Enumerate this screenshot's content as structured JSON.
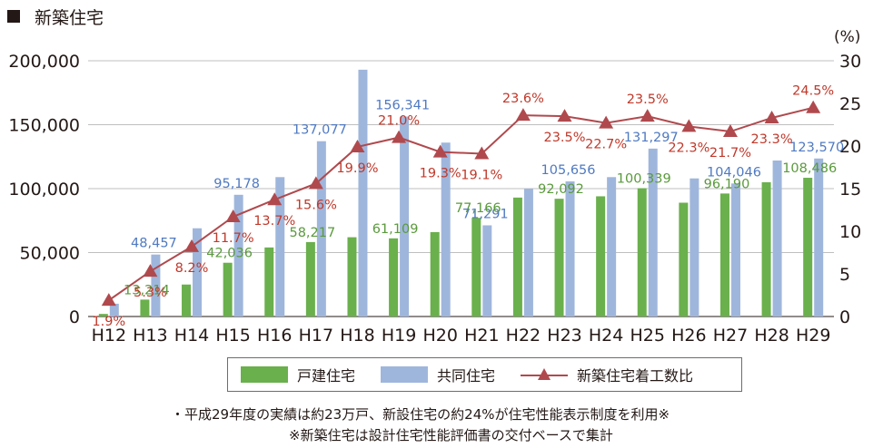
{
  "heading": "新築住宅",
  "percent_unit": "(%)",
  "legend": {
    "detached": "戸建住宅",
    "collective": "共同住宅",
    "ratio": "新築住宅着工数比"
  },
  "notes": {
    "line1": "・平成29年度の実績は約23万戸、新設住宅の約24%が住宅性能表示制度を利用※",
    "line2": "※新築住宅は設計住宅性能評価書の交付ベースで集計"
  },
  "colors": {
    "detached": "#6ab04c",
    "collective": "#9fb6dc",
    "ratio": "#b0494d",
    "collective_label": "#4f7ac2",
    "detached_label": "#5a9a3c",
    "ratio_label": "#c0392b"
  },
  "chart_data": {
    "type": "bar",
    "categories": [
      "H12",
      "H13",
      "H14",
      "H15",
      "H16",
      "H17",
      "H18",
      "H19",
      "H20",
      "H21",
      "H22",
      "H23",
      "H24",
      "H25",
      "H26",
      "H27",
      "H28",
      "H29"
    ],
    "series": [
      {
        "name": "戸建住宅",
        "type": "bar",
        "axis": "left",
        "values": [
          2000,
          13214,
          25000,
          42036,
          54000,
          58217,
          62000,
          61109,
          66000,
          77166,
          93000,
          92092,
          94000,
          100339,
          89000,
          96190,
          105000,
          108486
        ],
        "labels": [
          "",
          "13,214",
          "",
          "42,036",
          "",
          "58,217",
          "",
          "61,109",
          "",
          "77,166",
          "",
          "92,092",
          "",
          "100,339",
          "",
          "96,190",
          "",
          "108,486"
        ]
      },
      {
        "name": "共同住宅",
        "type": "bar",
        "axis": "left",
        "values": [
          10000,
          48457,
          69000,
          95178,
          109000,
          137077,
          193000,
          156341,
          136000,
          71291,
          100000,
          105656,
          109000,
          131297,
          108000,
          104046,
          122000,
          123570
        ],
        "labels": [
          "",
          "48,457",
          "",
          "95,178",
          "",
          "137,077",
          "",
          "156,341",
          "",
          "71,291",
          "",
          "105,656",
          "",
          "131,297",
          "",
          "104,046",
          "",
          "123,570"
        ]
      },
      {
        "name": "新築住宅着工数比",
        "type": "line",
        "axis": "right",
        "values": [
          1.9,
          5.3,
          8.2,
          11.7,
          13.7,
          15.6,
          19.9,
          21.0,
          19.3,
          19.1,
          23.6,
          23.5,
          22.7,
          23.5,
          22.3,
          21.7,
          23.3,
          24.5
        ],
        "labels": [
          "1.9%",
          "5.3%",
          "8.2%",
          "11.7%",
          "13.7%",
          "15.6%",
          "19.9%",
          "21.0%",
          "19.3%",
          "19.1%",
          "23.6%",
          "23.5%",
          "22.7%",
          "23.5%",
          "22.3%",
          "21.7%",
          "23.3%",
          "24.5%"
        ]
      }
    ],
    "y_left": {
      "min": 0,
      "max": 200000,
      "ticks": [
        0,
        50000,
        100000,
        150000,
        200000
      ],
      "tick_labels": [
        "0",
        "50,000",
        "100,000",
        "150,000",
        "200,000"
      ]
    },
    "y_right": {
      "min": 0,
      "max": 30,
      "ticks": [
        0,
        5,
        10,
        15,
        20,
        25,
        30
      ],
      "tick_labels": [
        "0",
        "5",
        "10",
        "15",
        "20",
        "25",
        "30"
      ]
    },
    "grid": true,
    "legend_position": "bottom"
  }
}
